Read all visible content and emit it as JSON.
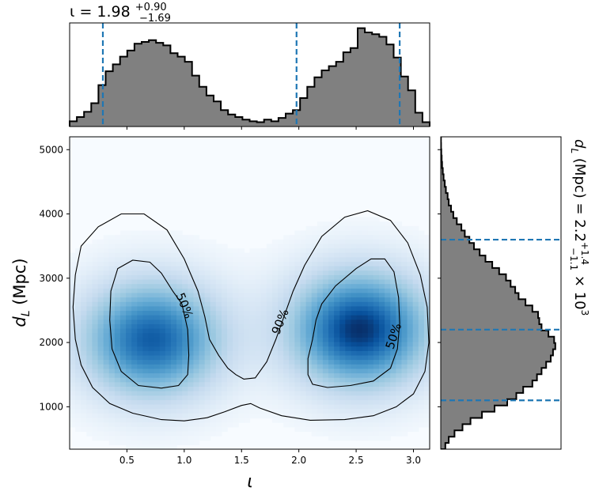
{
  "chart_data": [
    {
      "type": "heatmap",
      "panel": "joint",
      "xlabel": "ι",
      "ylabel": "d_L (Mpc)",
      "xlim": [
        0.0,
        3.1416
      ],
      "ylim": [
        340,
        5200
      ],
      "x_ticks": [
        0.5,
        1.0,
        1.5,
        2.0,
        2.5,
        3.0
      ],
      "y_ticks": [
        1000,
        2000,
        3000,
        4000,
        5000
      ],
      "x_tick_labels": [
        "0.5",
        "1.0",
        "1.5",
        "2.0",
        "2.5",
        "3.0"
      ],
      "y_tick_labels": [
        "1000",
        "2000",
        "3000",
        "4000",
        "5000"
      ],
      "colormap": "blues",
      "density_peaks": [
        {
          "x": 0.72,
          "y": 2050,
          "relative_height": 0.88
        },
        {
          "x": 2.53,
          "y": 2200,
          "relative_height": 1.0
        }
      ],
      "contours": [
        {
          "label": "50%",
          "lines": [
            [
              [
                0.35,
                2350
              ],
              [
                0.36,
                2800
              ],
              [
                0.42,
                3150
              ],
              [
                0.55,
                3280
              ],
              [
                0.7,
                3250
              ],
              [
                0.8,
                3080
              ],
              [
                0.9,
                2800
              ],
              [
                0.98,
                2600
              ],
              [
                1.03,
                2200
              ],
              [
                1.04,
                1800
              ],
              [
                1.03,
                1500
              ],
              [
                0.95,
                1330
              ],
              [
                0.8,
                1290
              ],
              [
                0.6,
                1330
              ],
              [
                0.45,
                1550
              ],
              [
                0.37,
                1900
              ],
              [
                0.35,
                2350
              ]
            ],
            [
              [
                2.15,
                2350
              ],
              [
                2.2,
                2600
              ],
              [
                2.32,
                2880
              ],
              [
                2.5,
                3150
              ],
              [
                2.63,
                3300
              ],
              [
                2.75,
                3300
              ],
              [
                2.83,
                3100
              ],
              [
                2.87,
                2700
              ],
              [
                2.88,
                2300
              ],
              [
                2.86,
                1900
              ],
              [
                2.8,
                1600
              ],
              [
                2.65,
                1400
              ],
              [
                2.45,
                1330
              ],
              [
                2.25,
                1300
              ],
              [
                2.12,
                1350
              ],
              [
                2.08,
                1500
              ],
              [
                2.08,
                1750
              ],
              [
                2.12,
                2050
              ],
              [
                2.15,
                2350
              ]
            ]
          ]
        },
        {
          "label": "90%",
          "lines": [
            [
              [
                1.52,
                1430
              ],
              [
                1.45,
                1500
              ],
              [
                1.38,
                1600
              ],
              [
                1.3,
                1800
              ],
              [
                1.22,
                2050
              ],
              [
                1.18,
                2400
              ],
              [
                1.12,
                2800
              ],
              [
                1.0,
                3300
              ],
              [
                0.85,
                3750
              ],
              [
                0.65,
                4000
              ],
              [
                0.45,
                4000
              ],
              [
                0.25,
                3800
              ],
              [
                0.1,
                3500
              ],
              [
                0.05,
                3050
              ],
              [
                0.03,
                2550
              ],
              [
                0.05,
                2050
              ],
              [
                0.1,
                1650
              ],
              [
                0.2,
                1300
              ],
              [
                0.35,
                1050
              ],
              [
                0.55,
                900
              ],
              [
                0.8,
                800
              ],
              [
                1.0,
                780
              ],
              [
                1.2,
                830
              ],
              [
                1.35,
                920
              ],
              [
                1.5,
                1020
              ],
              [
                1.58,
                1050
              ],
              [
                1.66,
                980
              ],
              [
                1.85,
                860
              ],
              [
                2.1,
                790
              ],
              [
                2.4,
                800
              ],
              [
                2.65,
                860
              ],
              [
                2.85,
                1000
              ],
              [
                3.0,
                1200
              ],
              [
                3.1,
                1550
              ],
              [
                3.135,
                2000
              ],
              [
                3.12,
                2550
              ],
              [
                3.06,
                3050
              ],
              [
                2.95,
                3550
              ],
              [
                2.8,
                3900
              ],
              [
                2.6,
                4050
              ],
              [
                2.4,
                3950
              ],
              [
                2.2,
                3650
              ],
              [
                2.05,
                3200
              ],
              [
                1.95,
                2800
              ],
              [
                1.87,
                2400
              ],
              [
                1.8,
                2050
              ],
              [
                1.72,
                1700
              ],
              [
                1.62,
                1450
              ],
              [
                1.52,
                1430
              ]
            ]
          ]
        }
      ]
    },
    {
      "type": "histogram",
      "panel": "top-marginal",
      "variable": "ι",
      "title": "ι = 1.98",
      "title_sup": "+0.90",
      "title_sub": "−1.69",
      "xlim": [
        0.0,
        3.1416
      ],
      "bin_edges": [
        0.0,
        0.0628,
        0.1257,
        0.1885,
        0.2513,
        0.3142,
        0.377,
        0.4398,
        0.5027,
        0.5655,
        0.6283,
        0.6912,
        0.754,
        0.8168,
        0.8796,
        0.9425,
        1.0053,
        1.0681,
        1.131,
        1.1938,
        1.2566,
        1.3195,
        1.3823,
        1.4451,
        1.508,
        1.5708,
        1.6336,
        1.6965,
        1.7593,
        1.8221,
        1.885,
        1.9478,
        2.0106,
        2.0735,
        2.1363,
        2.1991,
        2.2619,
        2.3248,
        2.3876,
        2.4504,
        2.5133,
        2.5761,
        2.6389,
        2.7018,
        2.7646,
        2.8274,
        2.8903,
        2.9531,
        3.0159,
        3.0788,
        3.1416
      ],
      "counts": [
        0.06,
        0.11,
        0.17,
        0.27,
        0.48,
        0.64,
        0.72,
        0.81,
        0.88,
        0.96,
        0.98,
        1.0,
        0.97,
        0.94,
        0.85,
        0.81,
        0.75,
        0.59,
        0.46,
        0.36,
        0.29,
        0.19,
        0.14,
        0.11,
        0.08,
        0.06,
        0.05,
        0.08,
        0.06,
        0.1,
        0.15,
        0.19,
        0.33,
        0.46,
        0.57,
        0.65,
        0.7,
        0.75,
        0.86,
        0.91,
        1.14,
        1.09,
        1.07,
        1.04,
        0.95,
        0.8,
        0.58,
        0.42,
        0.16,
        0.05
      ],
      "quantile_lines": [
        0.29,
        1.98,
        2.88
      ]
    },
    {
      "type": "histogram",
      "panel": "right-marginal",
      "orientation": "horizontal",
      "variable": "d_L (Mpc)",
      "label": "d_L (Mpc) = 2.2",
      "label_sup": "+1.4",
      "label_sub": "−1.1",
      "label_suffix": "× 10",
      "label_exp": "3",
      "ylim": [
        340,
        5200
      ],
      "bin_edges": [
        340,
        437,
        534,
        632,
        729,
        826,
        923,
        1020,
        1118,
        1215,
        1312,
        1409,
        1506,
        1604,
        1701,
        1798,
        1895,
        1992,
        2090,
        2187,
        2284,
        2381,
        2478,
        2576,
        2673,
        2770,
        2867,
        2964,
        3061,
        3159,
        3256,
        3353,
        3450,
        3547,
        3645,
        3742,
        3839,
        3936,
        4033,
        4131,
        4228,
        4325,
        4422,
        4519,
        4617,
        4714,
        4811,
        4908,
        5005,
        5102,
        5200
      ],
      "counts": [
        0.04,
        0.07,
        0.12,
        0.19,
        0.26,
        0.36,
        0.47,
        0.58,
        0.66,
        0.72,
        0.8,
        0.84,
        0.88,
        0.92,
        0.96,
        0.98,
        1.0,
        0.99,
        0.94,
        0.88,
        0.86,
        0.85,
        0.8,
        0.74,
        0.68,
        0.65,
        0.61,
        0.57,
        0.51,
        0.45,
        0.39,
        0.34,
        0.29,
        0.25,
        0.21,
        0.18,
        0.14,
        0.11,
        0.09,
        0.07,
        0.06,
        0.045,
        0.035,
        0.025,
        0.018,
        0.012,
        0.008,
        0.005,
        0.003,
        0.002
      ],
      "quantile_lines": [
        1100,
        2200,
        3600
      ]
    }
  ],
  "colors": {
    "hist_fill": "#808080",
    "quantile_line": "#1f77b4",
    "contour": "#000000",
    "cmap_low": "#f7fbff",
    "cmap_high": "#08306b"
  }
}
